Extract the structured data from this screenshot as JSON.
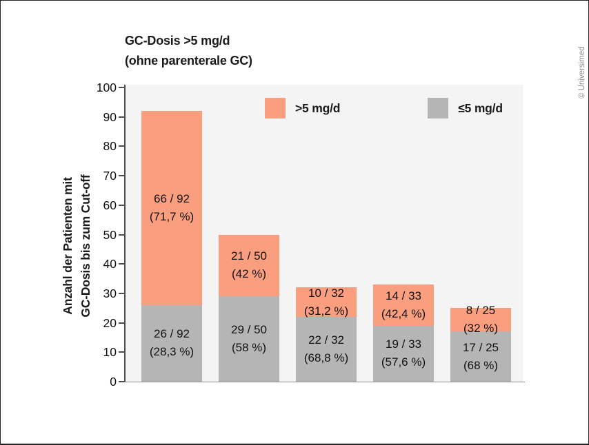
{
  "copyright": "© Universimed",
  "chart_data": {
    "type": "bar",
    "stacked": true,
    "title_lines": [
      "GC-Dosis >5 mg/d",
      "(ohne parenterale GC)"
    ],
    "ylabel_lines": [
      "Anzahl der Patienten mit",
      "GC-Dosis bis zum Cut-off"
    ],
    "ylim": [
      0,
      100
    ],
    "ytick_step": 10,
    "legend_position": "top-inside",
    "grid": false,
    "colors": {
      "plot_background": "#f4f4f4",
      "axis": "#4d4d4d"
    },
    "series": [
      {
        "name": "≤5 mg/d",
        "color": "#b5b5b5",
        "values": [
          26,
          29,
          22,
          19,
          17
        ],
        "labels": [
          [
            "26 / 92",
            "(28,3 %)"
          ],
          [
            "29 / 50",
            "(58 %)"
          ],
          [
            "22 / 32",
            "(68,8 %)"
          ],
          [
            "19 / 33",
            "(57,6 %)"
          ],
          [
            "17 / 25",
            "(68 %)"
          ]
        ]
      },
      {
        "name": ">5 mg/d",
        "color": "#fa9e80",
        "values": [
          66,
          21,
          10,
          14,
          8
        ],
        "labels": [
          [
            "66 / 92",
            "(71,7 %)"
          ],
          [
            "21 / 50",
            "(42 %)"
          ],
          [
            "10 / 32",
            "(31,2 %)"
          ],
          [
            "14 / 33",
            "(42,4 %)"
          ],
          [
            "8 / 25",
            "(32 %)"
          ]
        ]
      }
    ]
  }
}
